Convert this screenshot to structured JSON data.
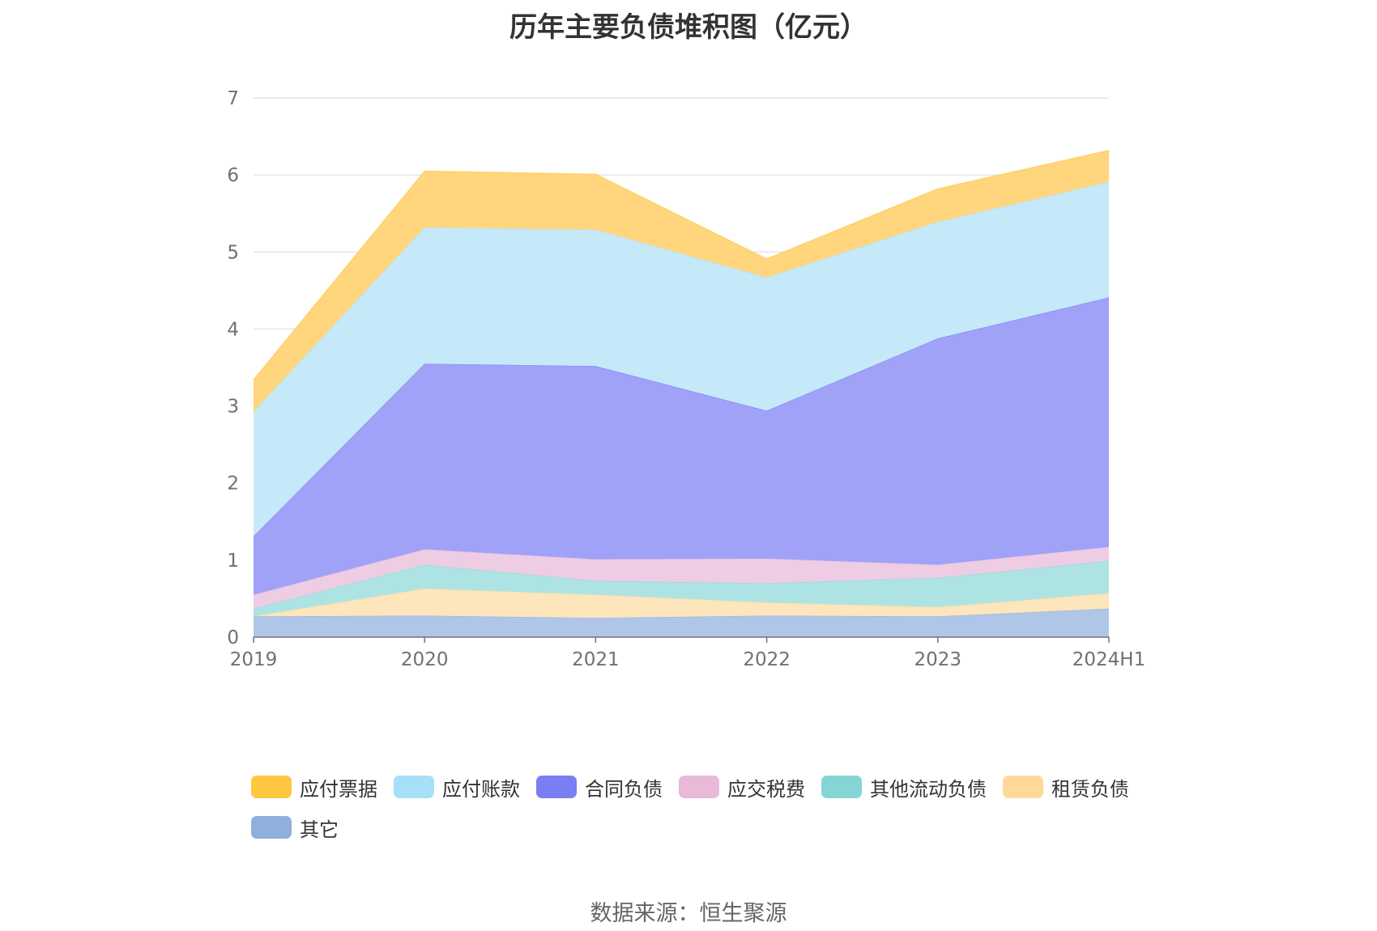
{
  "chart_data": {
    "type": "area",
    "stacked": true,
    "title": "历年主要负债堆积图（亿元）",
    "categories": [
      "2019",
      "2020",
      "2021",
      "2022",
      "2023",
      "2024H1"
    ],
    "ylim": [
      0,
      7
    ],
    "yticks": [
      0,
      1,
      2,
      3,
      4,
      5,
      6,
      7
    ],
    "grid": true,
    "legend_position": "bottom",
    "series": [
      {
        "name": "其它",
        "color": "#8fafdd",
        "fill": "#b0c6e8",
        "values": [
          0.27,
          0.28,
          0.25,
          0.28,
          0.27,
          0.37
        ]
      },
      {
        "name": "租赁负债",
        "color": "#ffd99a",
        "fill": "#fde5bc",
        "values": [
          0.0,
          0.35,
          0.3,
          0.17,
          0.12,
          0.2
        ]
      },
      {
        "name": "其他流动负债",
        "color": "#86d5d5",
        "fill": "#ade4e3",
        "values": [
          0.1,
          0.31,
          0.18,
          0.25,
          0.38,
          0.42
        ]
      },
      {
        "name": "应交税费",
        "color": "#e8bad8",
        "fill": "#eecce4",
        "values": [
          0.18,
          0.2,
          0.28,
          0.32,
          0.17,
          0.18
        ]
      },
      {
        "name": "合同负债",
        "color": "#7b7ef3",
        "fill": "#a0a2f8",
        "values": [
          0.76,
          2.41,
          2.51,
          1.92,
          2.94,
          3.24
        ]
      },
      {
        "name": "应付账款",
        "color": "#a7dff8",
        "fill": "#c6e9fa",
        "values": [
          1.62,
          1.77,
          1.77,
          1.73,
          1.51,
          1.5
        ]
      },
      {
        "name": "应付票据",
        "color": "#ffc740",
        "fill": "#ffd67d",
        "values": [
          0.41,
          0.73,
          0.72,
          0.24,
          0.43,
          0.41
        ]
      }
    ]
  },
  "legend_order": [
    "应付票据",
    "应付账款",
    "合同负债",
    "应交税费",
    "其他流动负债",
    "租赁负债",
    "其它"
  ],
  "source_note": "数据来源：恒生聚源"
}
